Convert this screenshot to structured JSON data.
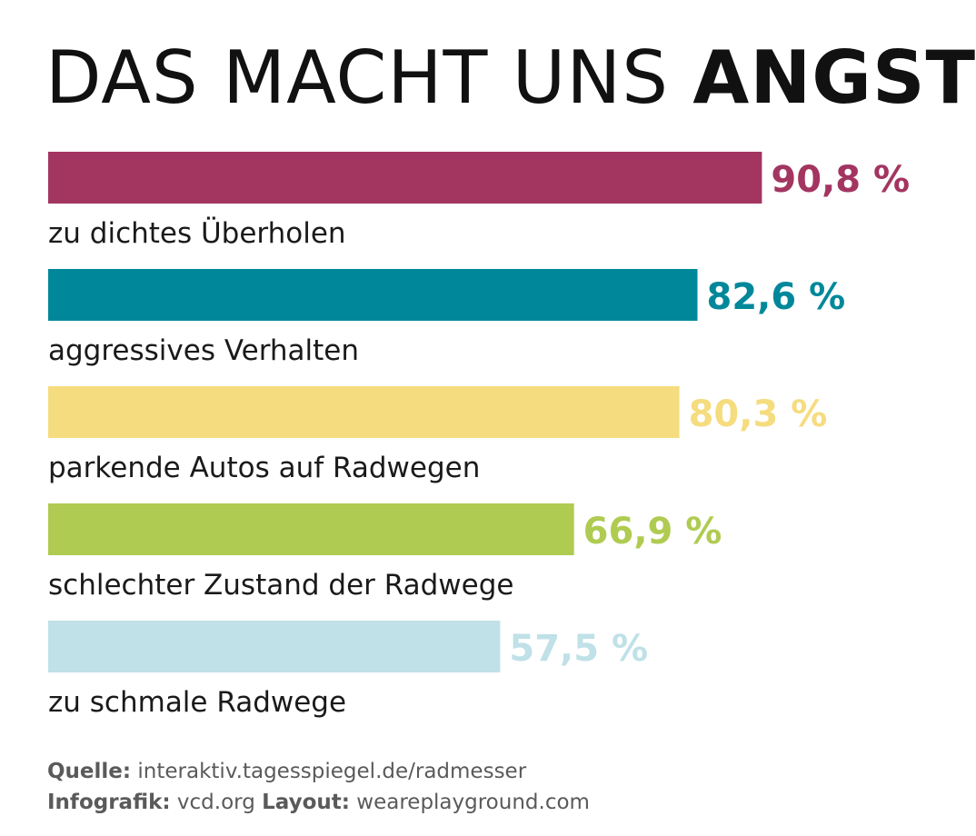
{
  "title": {
    "light": "DAS MACHT UNS",
    "bold": "ANGST"
  },
  "chart_data": {
    "type": "bar",
    "orientation": "horizontal",
    "title": "DAS MACHT UNS ANGST",
    "xlim": [
      0,
      100
    ],
    "unit": "%",
    "grid": false,
    "categories": [
      "zu dichtes Überholen",
      "aggressives Verhalten",
      "parkende Autos auf Radwegen",
      "schlechter Zustand der Radwege",
      "zu schmale Radwege"
    ],
    "values": [
      90.8,
      82.6,
      80.3,
      66.9,
      57.5
    ],
    "value_labels": [
      "90,8 %",
      "82,6 %",
      "80,3 %",
      "66,9 %",
      "57,5 %"
    ],
    "colors": [
      "#A33561",
      "#00889A",
      "#F5DC7E",
      "#AFCB51",
      "#BFE1E7"
    ]
  },
  "footer": {
    "source_label": "Quelle:",
    "source_value": "interaktiv.tagesspiegel.de/radmesser",
    "infografik_label": "Infografik:",
    "infografik_value": "vcd.org",
    "layout_label": "Layout:",
    "layout_value": "weareplayground.com"
  }
}
